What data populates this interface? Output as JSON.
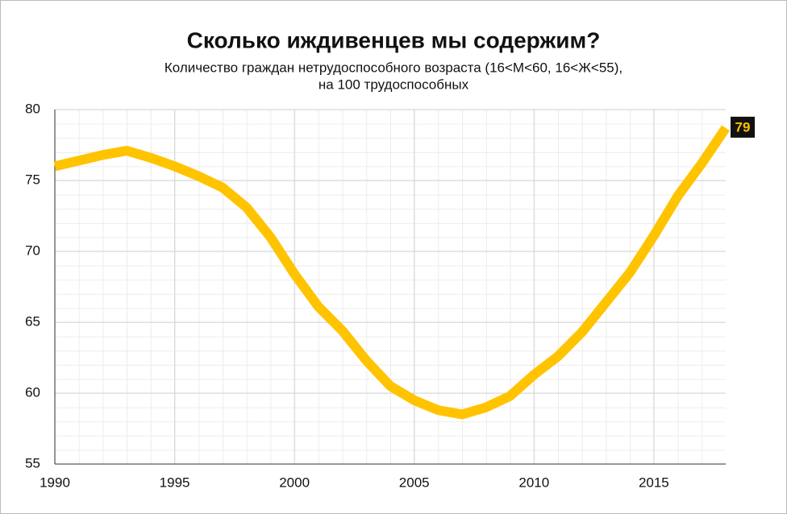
{
  "chart_data": {
    "type": "line",
    "title": "Сколько иждивенцев мы содержим?",
    "subtitle": [
      "Количество граждан нетрудоспособного возраста (16<М<60, 16<Ж<55),",
      "на 100 трудоспособных"
    ],
    "x": [
      1990,
      1991,
      1992,
      1993,
      1994,
      1995,
      1996,
      1997,
      1998,
      1999,
      2000,
      2001,
      2002,
      2003,
      2004,
      2005,
      2006,
      2007,
      2008,
      2009,
      2010,
      2011,
      2012,
      2013,
      2014,
      2015,
      2016,
      2017,
      2018
    ],
    "series": [
      {
        "color": "#ffc300",
        "values": [
          76.0,
          76.4,
          76.8,
          77.1,
          76.6,
          76.0,
          75.3,
          74.5,
          73.1,
          71.0,
          68.4,
          66.1,
          64.4,
          62.3,
          60.5,
          59.5,
          58.8,
          58.5,
          59.0,
          59.8,
          61.3,
          62.6,
          64.3,
          66.4,
          68.5,
          71.1,
          73.9,
          76.2,
          78.7
        ],
        "value_labels": [
          null,
          null,
          null,
          null,
          null,
          null,
          null,
          null,
          null,
          null,
          null,
          null,
          null,
          null,
          null,
          null,
          null,
          null,
          null,
          null,
          null,
          null,
          null,
          null,
          null,
          null,
          null,
          null,
          "79"
        ]
      }
    ],
    "xlim": [
      1990,
      2018
    ],
    "xticks": [
      1990,
      1995,
      2000,
      2005,
      2010,
      2015
    ],
    "ylim": [
      55,
      80
    ],
    "yticks": [
      55,
      60,
      65,
      70,
      75,
      80
    ],
    "grid": true
  }
}
